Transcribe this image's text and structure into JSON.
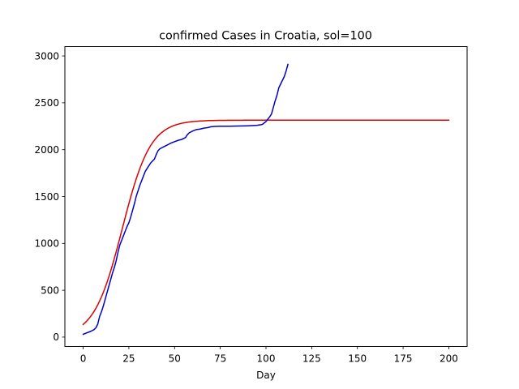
{
  "chart_data": {
    "type": "line",
    "title": "confirmed Cases in Croatia, sol=100",
    "xlabel": "Day",
    "ylabel": "",
    "xlim": [
      -10,
      210
    ],
    "ylim": [
      -100,
      3100
    ],
    "xticks": [
      0,
      25,
      50,
      75,
      100,
      125,
      150,
      175,
      200
    ],
    "yticks": [
      0,
      500,
      1000,
      1500,
      2000,
      2500,
      3000
    ],
    "grid": false,
    "series": [
      {
        "color": "#0000cc",
        "x": [
          0,
          2,
          4,
          6,
          7,
          8,
          9,
          10,
          11,
          12,
          13,
          14,
          15,
          16,
          17,
          18,
          19,
          20,
          21,
          22,
          23,
          24,
          25,
          26,
          27,
          28,
          29,
          30,
          31,
          32,
          33,
          34,
          35,
          36,
          37,
          38,
          39,
          40,
          41,
          42,
          43,
          44,
          45,
          46,
          47,
          48,
          50,
          52,
          54,
          56,
          57,
          58,
          60,
          62,
          64,
          66,
          68,
          70,
          72,
          75,
          80,
          85,
          90,
          95,
          97,
          98,
          100,
          102,
          103,
          104,
          105,
          106,
          107,
          108,
          109,
          110,
          111,
          112
        ],
        "y": [
          30,
          45,
          60,
          80,
          100,
          140,
          220,
          270,
          330,
          400,
          470,
          540,
          610,
          680,
          740,
          810,
          900,
          980,
          1030,
          1080,
          1130,
          1180,
          1220,
          1280,
          1350,
          1420,
          1500,
          1560,
          1620,
          1670,
          1720,
          1770,
          1800,
          1830,
          1860,
          1880,
          1900,
          1950,
          1990,
          2010,
          2020,
          2030,
          2040,
          2050,
          2060,
          2070,
          2085,
          2100,
          2110,
          2130,
          2160,
          2180,
          2200,
          2215,
          2220,
          2230,
          2235,
          2245,
          2248,
          2250,
          2250,
          2252,
          2255,
          2260,
          2265,
          2270,
          2300,
          2350,
          2380,
          2450,
          2520,
          2580,
          2660,
          2700,
          2740,
          2780,
          2840,
          2910
        ]
      },
      {
        "color": "#dd0000",
        "model": {
          "K": 2315,
          "r": 0.13,
          "t0": 21.4
        },
        "x": [
          0,
          200
        ],
        "step": 1
      }
    ]
  }
}
